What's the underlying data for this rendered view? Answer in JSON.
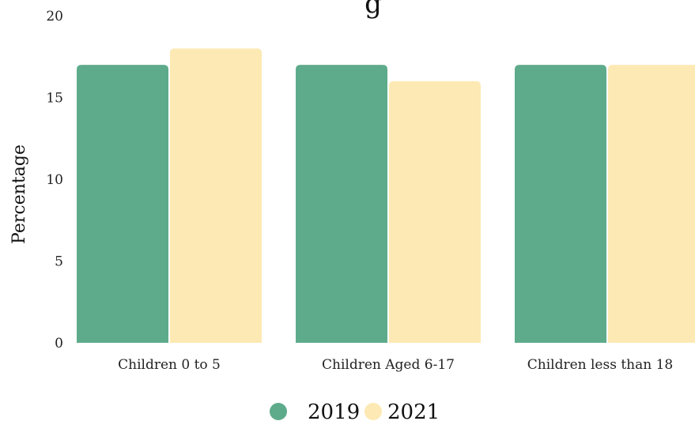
{
  "chart_data": {
    "type": "bar",
    "title": "",
    "title_fragment": "g",
    "xlabel": "",
    "ylabel": "Percentage",
    "ylim": [
      0,
      20
    ],
    "yticks": [
      0,
      5,
      10,
      15,
      20
    ],
    "categories": [
      "Children 0 to 5",
      "Children Aged 6-17",
      "Children less than 18"
    ],
    "series": [
      {
        "name": "2019",
        "color": "#5eab8b",
        "values": [
          17,
          17,
          17
        ]
      },
      {
        "name": "2021",
        "color": "#fde9b4",
        "values": [
          18,
          16,
          17
        ]
      }
    ],
    "grid": false,
    "legend_position": "bottom-center"
  }
}
